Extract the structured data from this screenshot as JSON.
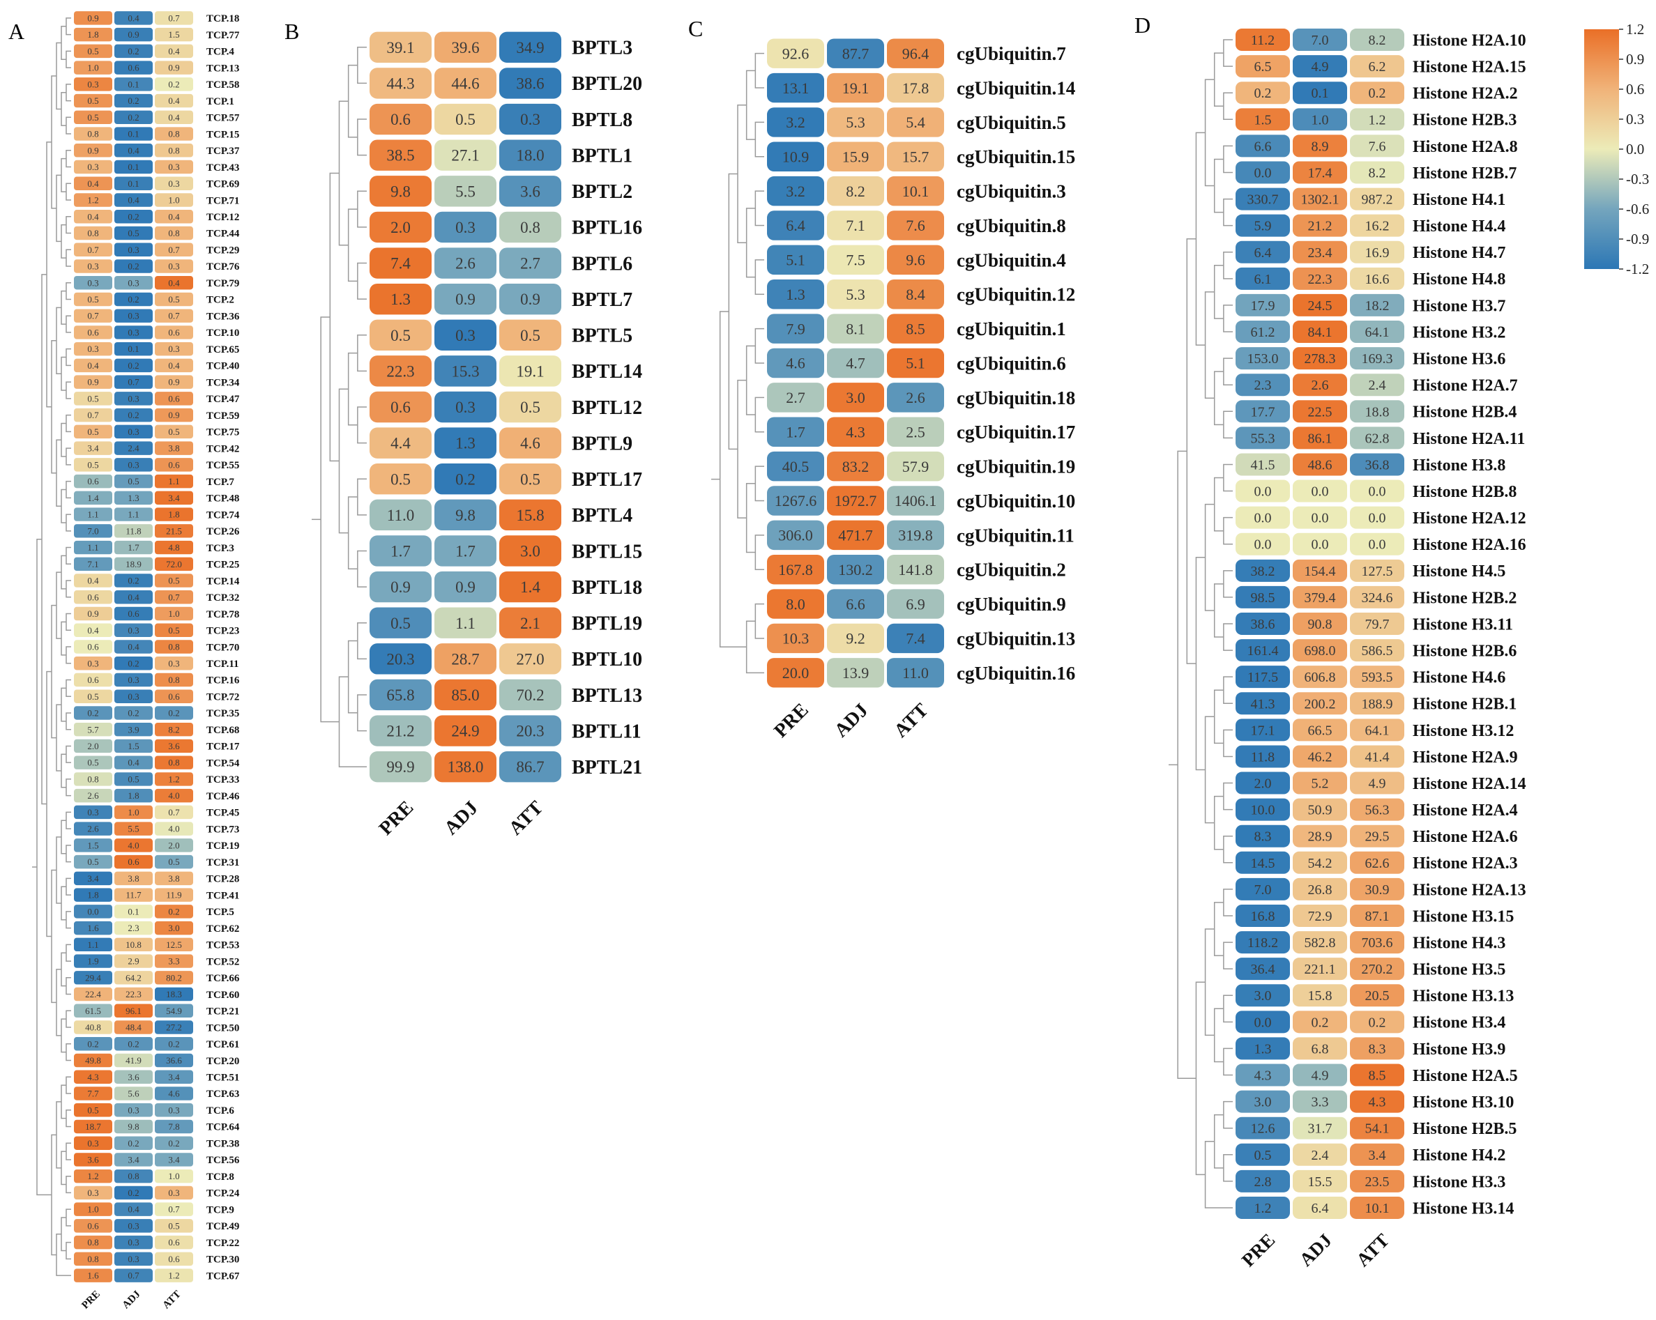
{
  "figure": {
    "labels": {
      "A": "A",
      "B": "B",
      "C": "C",
      "D": "D"
    },
    "columns": [
      "PRE",
      "ADJ",
      "ATT"
    ],
    "colorbar": {
      "ticks": [
        "1.2",
        "0.9",
        "0.6",
        "0.3",
        "0.0",
        "-0.3",
        "-0.6",
        "-0.9",
        "-1.2"
      ],
      "values": [
        1.2,
        0.9,
        0.6,
        0.3,
        0.0,
        -0.3,
        -0.6,
        -0.9,
        -1.2
      ],
      "colors": {
        "low": "#2c77b5",
        "lowmid": "#74a5bd",
        "mid": "#ecebb8",
        "highmid": "#f0b379",
        "high": "#ea6f27"
      }
    }
  },
  "chart_data": [
    {
      "panel": "A",
      "type": "heatmap",
      "title": "",
      "xlabel": "",
      "ylabel": "",
      "columns": [
        "PRE",
        "ADJ",
        "ATT"
      ],
      "rows": [
        "TCP.18",
        "TCP.77",
        "TCP.4",
        "TCP.13",
        "TCP.58",
        "TCP.1",
        "TCP.57",
        "TCP.15",
        "TCP.37",
        "TCP.43",
        "TCP.69",
        "TCP.71",
        "TCP.12",
        "TCP.44",
        "TCP.29",
        "TCP.76",
        "TCP.79",
        "TCP.2",
        "TCP.36",
        "TCP.10",
        "TCP.65",
        "TCP.40",
        "TCP.34",
        "TCP.47",
        "TCP.59",
        "TCP.75",
        "TCP.42",
        "TCP.55",
        "TCP.7",
        "TCP.48",
        "TCP.74",
        "TCP.26",
        "TCP.3",
        "TCP.25",
        "TCP.14",
        "TCP.32",
        "TCP.78",
        "TCP.23",
        "TCP.70",
        "TCP.11",
        "TCP.16",
        "TCP.72",
        "TCP.35",
        "TCP.68",
        "TCP.17",
        "TCP.54",
        "TCP.33",
        "TCP.46",
        "TCP.45",
        "TCP.73",
        "TCP.19",
        "TCP.31",
        "TCP.28",
        "TCP.41",
        "TCP.5",
        "TCP.62",
        "TCP.53",
        "TCP.52",
        "TCP.66",
        "TCP.60",
        "TCP.21",
        "TCP.50",
        "TCP.61",
        "TCP.20",
        "TCP.51",
        "TCP.63",
        "TCP.6",
        "TCP.64",
        "TCP.38",
        "TCP.56",
        "TCP.8",
        "TCP.24",
        "TCP.9",
        "TCP.49",
        "TCP.22",
        "TCP.30",
        "TCP.67"
      ],
      "values": [
        [
          0.9,
          0.4,
          0.7
        ],
        [
          1.8,
          0.9,
          1.5
        ],
        [
          0.5,
          0.2,
          0.4
        ],
        [
          1.0,
          0.6,
          0.9
        ],
        [
          0.3,
          0.1,
          0.2
        ],
        [
          0.5,
          0.2,
          0.4
        ],
        [
          0.5,
          0.2,
          0.4
        ],
        [
          0.8,
          0.1,
          0.8
        ],
        [
          0.9,
          0.4,
          0.8
        ],
        [
          0.3,
          0.1,
          0.3
        ],
        [
          0.4,
          0.1,
          0.3
        ],
        [
          1.2,
          0.4,
          1.0
        ],
        [
          0.4,
          0.2,
          0.4
        ],
        [
          0.8,
          0.5,
          0.8
        ],
        [
          0.7,
          0.3,
          0.7
        ],
        [
          0.3,
          0.2,
          0.3
        ],
        [
          0.3,
          0.3,
          0.4
        ],
        [
          0.5,
          0.2,
          0.5
        ],
        [
          0.7,
          0.3,
          0.7
        ],
        [
          0.6,
          0.3,
          0.6
        ],
        [
          0.3,
          0.1,
          0.3
        ],
        [
          0.4,
          0.2,
          0.4
        ],
        [
          0.9,
          0.7,
          0.9
        ],
        [
          0.5,
          0.3,
          0.6
        ],
        [
          0.7,
          0.2,
          0.9
        ],
        [
          0.5,
          0.3,
          0.5
        ],
        [
          3.4,
          2.4,
          3.8
        ],
        [
          0.5,
          0.3,
          0.6
        ],
        [
          0.6,
          0.5,
          1.1
        ],
        [
          1.4,
          1.3,
          3.4
        ],
        [
          1.1,
          1.1,
          1.8
        ],
        [
          7.0,
          11.8,
          21.5
        ],
        [
          1.1,
          1.7,
          4.8
        ],
        [
          7.1,
          18.9,
          72.0
        ],
        [
          0.4,
          0.2,
          0.5
        ],
        [
          0.6,
          0.4,
          0.7
        ],
        [
          0.9,
          0.6,
          1.0
        ],
        [
          0.4,
          0.3,
          0.5
        ],
        [
          0.6,
          0.4,
          0.8
        ],
        [
          0.3,
          0.2,
          0.3
        ],
        [
          0.6,
          0.3,
          0.8
        ],
        [
          0.5,
          0.3,
          0.6
        ],
        [
          0.2,
          0.2,
          0.2
        ],
        [
          5.7,
          3.9,
          8.2
        ],
        [
          2.0,
          1.5,
          3.6
        ],
        [
          0.5,
          0.4,
          0.8
        ],
        [
          0.8,
          0.5,
          1.2
        ],
        [
          2.6,
          1.8,
          4.0
        ],
        [
          0.3,
          1.0,
          0.7
        ],
        [
          2.6,
          5.5,
          4.0
        ],
        [
          1.5,
          4.0,
          2.0
        ],
        [
          0.5,
          0.6,
          0.5
        ],
        [
          3.4,
          3.8,
          3.8
        ],
        [
          1.8,
          11.7,
          11.9
        ],
        [
          0.0,
          0.1,
          0.2
        ],
        [
          1.6,
          2.3,
          3.0
        ],
        [
          1.1,
          10.8,
          12.5
        ],
        [
          1.9,
          2.9,
          3.3
        ],
        [
          29.4,
          64.2,
          80.2
        ],
        [
          22.4,
          22.3,
          18.3
        ],
        [
          61.5,
          96.1,
          54.9
        ],
        [
          40.8,
          48.4,
          27.2
        ],
        [
          0.2,
          0.2,
          0.2
        ],
        [
          49.8,
          41.9,
          36.6
        ],
        [
          4.3,
          3.6,
          3.4
        ],
        [
          7.7,
          5.6,
          4.6
        ],
        [
          0.5,
          0.3,
          0.3
        ],
        [
          18.7,
          9.8,
          7.8
        ],
        [
          0.3,
          0.2,
          0.2
        ],
        [
          3.6,
          3.4,
          3.4
        ],
        [
          1.2,
          0.8,
          1.0
        ],
        [
          0.3,
          0.2,
          0.3
        ],
        [
          1.0,
          0.4,
          0.7
        ],
        [
          0.6,
          0.3,
          0.5
        ],
        [
          0.8,
          0.3,
          0.6
        ],
        [
          0.8,
          0.3,
          0.6
        ],
        [
          1.6,
          0.7,
          1.2
        ]
      ]
    },
    {
      "panel": "B",
      "type": "heatmap",
      "title": "",
      "xlabel": "",
      "ylabel": "",
      "columns": [
        "PRE",
        "ADJ",
        "ATT"
      ],
      "rows": [
        "BPTL3",
        "BPTL20",
        "BPTL8",
        "BPTL1",
        "BPTL2",
        "BPTL16",
        "BPTL6",
        "BPTL7",
        "BPTL5",
        "BPTL14",
        "BPTL12",
        "BPTL9",
        "BPTL17",
        "BPTL4",
        "BPTL15",
        "BPTL18",
        "BPTL19",
        "BPTL10",
        "BPTL13",
        "BPTL11",
        "BPTL21"
      ],
      "values": [
        [
          39.1,
          39.6,
          34.9
        ],
        [
          44.3,
          44.6,
          38.6
        ],
        [
          0.6,
          0.5,
          0.3
        ],
        [
          38.5,
          27.1,
          18.0
        ],
        [
          9.8,
          5.5,
          3.6
        ],
        [
          2.0,
          0.3,
          0.8
        ],
        [
          7.4,
          2.6,
          2.7
        ],
        [
          1.3,
          0.9,
          0.9
        ],
        [
          0.5,
          0.3,
          0.5
        ],
        [
          22.3,
          15.3,
          19.1
        ],
        [
          0.6,
          0.3,
          0.5
        ],
        [
          4.4,
          1.3,
          4.6
        ],
        [
          0.5,
          0.2,
          0.5
        ],
        [
          11.0,
          9.8,
          15.8
        ],
        [
          1.7,
          1.7,
          3.0
        ],
        [
          0.9,
          0.9,
          1.4
        ],
        [
          0.5,
          1.1,
          2.1
        ],
        [
          20.3,
          28.7,
          27.0
        ],
        [
          65.8,
          85.0,
          70.2
        ],
        [
          21.2,
          24.9,
          20.3
        ],
        [
          99.9,
          138.0,
          86.7
        ]
      ]
    },
    {
      "panel": "C",
      "type": "heatmap",
      "title": "",
      "xlabel": "",
      "ylabel": "",
      "columns": [
        "PRE",
        "ADJ",
        "ATT"
      ],
      "rows": [
        "cgUbiquitin.7",
        "cgUbiquitin.14",
        "cgUbiquitin.5",
        "cgUbiquitin.15",
        "cgUbiquitin.3",
        "cgUbiquitin.8",
        "cgUbiquitin.4",
        "cgUbiquitin.12",
        "cgUbiquitin.1",
        "cgUbiquitin.6",
        "cgUbiquitin.18",
        "cgUbiquitin.17",
        "cgUbiquitin.19",
        "cgUbiquitin.10",
        "cgUbiquitin.11",
        "cgUbiquitin.2",
        "cgUbiquitin.9",
        "cgUbiquitin.13",
        "cgUbiquitin.16"
      ],
      "values": [
        [
          92.6,
          87.7,
          96.4
        ],
        [
          13.1,
          19.1,
          17.8
        ],
        [
          3.2,
          5.3,
          5.4
        ],
        [
          10.9,
          15.9,
          15.7
        ],
        [
          3.2,
          8.2,
          10.1
        ],
        [
          6.4,
          7.1,
          7.6
        ],
        [
          5.1,
          7.5,
          9.6
        ],
        [
          1.3,
          5.3,
          8.4
        ],
        [
          7.9,
          8.1,
          8.5
        ],
        [
          4.6,
          4.7,
          5.1
        ],
        [
          2.7,
          3.0,
          2.6
        ],
        [
          1.7,
          4.3,
          2.5
        ],
        [
          40.5,
          83.2,
          57.9
        ],
        [
          1267.6,
          1972.7,
          1406.1
        ],
        [
          306.0,
          471.7,
          319.8
        ],
        [
          167.8,
          130.2,
          141.8
        ],
        [
          8.0,
          6.6,
          6.9
        ],
        [
          10.3,
          9.2,
          7.4
        ],
        [
          20.0,
          13.9,
          11.0
        ]
      ]
    },
    {
      "panel": "D",
      "type": "heatmap",
      "title": "",
      "xlabel": "",
      "ylabel": "",
      "columns": [
        "PRE",
        "ADJ",
        "ATT"
      ],
      "rows": [
        "Histone H2A.10",
        "Histone H2A.15",
        "Histone H2A.2",
        "Histone H2B.3",
        "Histone H2A.8",
        "Histone H2B.7",
        "Histone H4.1",
        "Histone H4.4",
        "Histone H4.7",
        "Histone H4.8",
        "Histone H3.7",
        "Histone H3.2",
        "Histone H3.6",
        "Histone H2A.7",
        "Histone H2B.4",
        "Histone H2A.11",
        "Histone H3.8",
        "Histone H2B.8",
        "Histone H2A.12",
        "Histone H2A.16",
        "Histone H4.5",
        "Histone H2B.2",
        "Histone H3.11",
        "Histone H2B.6",
        "Histone H4.6",
        "Histone H2B.1",
        "Histone H3.12",
        "Histone H2A.9",
        "Histone H2A.14",
        "Histone H2A.4",
        "Histone H2A.6",
        "Histone H2A.3",
        "Histone H2A.13",
        "Histone H3.15",
        "Histone H4.3",
        "Histone H3.5",
        "Histone H3.13",
        "Histone H3.4",
        "Histone H3.9",
        "Histone H2A.5",
        "Histone H3.10",
        "Histone H2B.5",
        "Histone H4.2",
        "Histone H3.3",
        "Histone H3.14"
      ],
      "values": [
        [
          11.2,
          7.0,
          8.2
        ],
        [
          6.5,
          4.9,
          6.2
        ],
        [
          0.2,
          0.1,
          0.2
        ],
        [
          1.5,
          1.0,
          1.2
        ],
        [
          6.6,
          8.9,
          7.6
        ],
        [
          0.0,
          17.4,
          8.2
        ],
        [
          330.7,
          1302.1,
          987.2
        ],
        [
          5.9,
          21.2,
          16.2
        ],
        [
          6.4,
          23.4,
          16.9
        ],
        [
          6.1,
          22.3,
          16.6
        ],
        [
          17.9,
          24.5,
          18.2
        ],
        [
          61.2,
          84.1,
          64.1
        ],
        [
          153.0,
          278.3,
          169.3
        ],
        [
          2.3,
          2.6,
          2.4
        ],
        [
          17.7,
          22.5,
          18.8
        ],
        [
          55.3,
          86.1,
          62.8
        ],
        [
          41.5,
          48.6,
          36.8
        ],
        [
          0.0,
          0.0,
          0.0
        ],
        [
          0.0,
          0.0,
          0.0
        ],
        [
          0.0,
          0.0,
          0.0
        ],
        [
          38.2,
          154.4,
          127.5
        ],
        [
          98.5,
          379.4,
          324.6
        ],
        [
          38.6,
          90.8,
          79.7
        ],
        [
          161.4,
          698.0,
          586.5
        ],
        [
          117.5,
          606.8,
          593.5
        ],
        [
          41.3,
          200.2,
          188.9
        ],
        [
          17.1,
          66.5,
          64.1
        ],
        [
          11.8,
          46.2,
          41.4
        ],
        [
          2.0,
          5.2,
          4.9
        ],
        [
          10.0,
          50.9,
          56.3
        ],
        [
          8.3,
          28.9,
          29.5
        ],
        [
          14.5,
          54.2,
          62.6
        ],
        [
          7.0,
          26.8,
          30.9
        ],
        [
          16.8,
          72.9,
          87.1
        ],
        [
          118.2,
          582.8,
          703.6
        ],
        [
          36.4,
          221.1,
          270.2
        ],
        [
          3.0,
          15.8,
          20.5
        ],
        [
          0.0,
          0.2,
          0.2
        ],
        [
          1.3,
          6.8,
          8.3
        ],
        [
          4.3,
          4.9,
          8.5
        ],
        [
          3.0,
          3.3,
          4.3
        ],
        [
          12.6,
          31.7,
          54.1
        ],
        [
          0.5,
          2.4,
          3.4
        ],
        [
          2.8,
          15.5,
          23.5
        ],
        [
          1.2,
          6.4,
          10.1
        ]
      ]
    }
  ]
}
